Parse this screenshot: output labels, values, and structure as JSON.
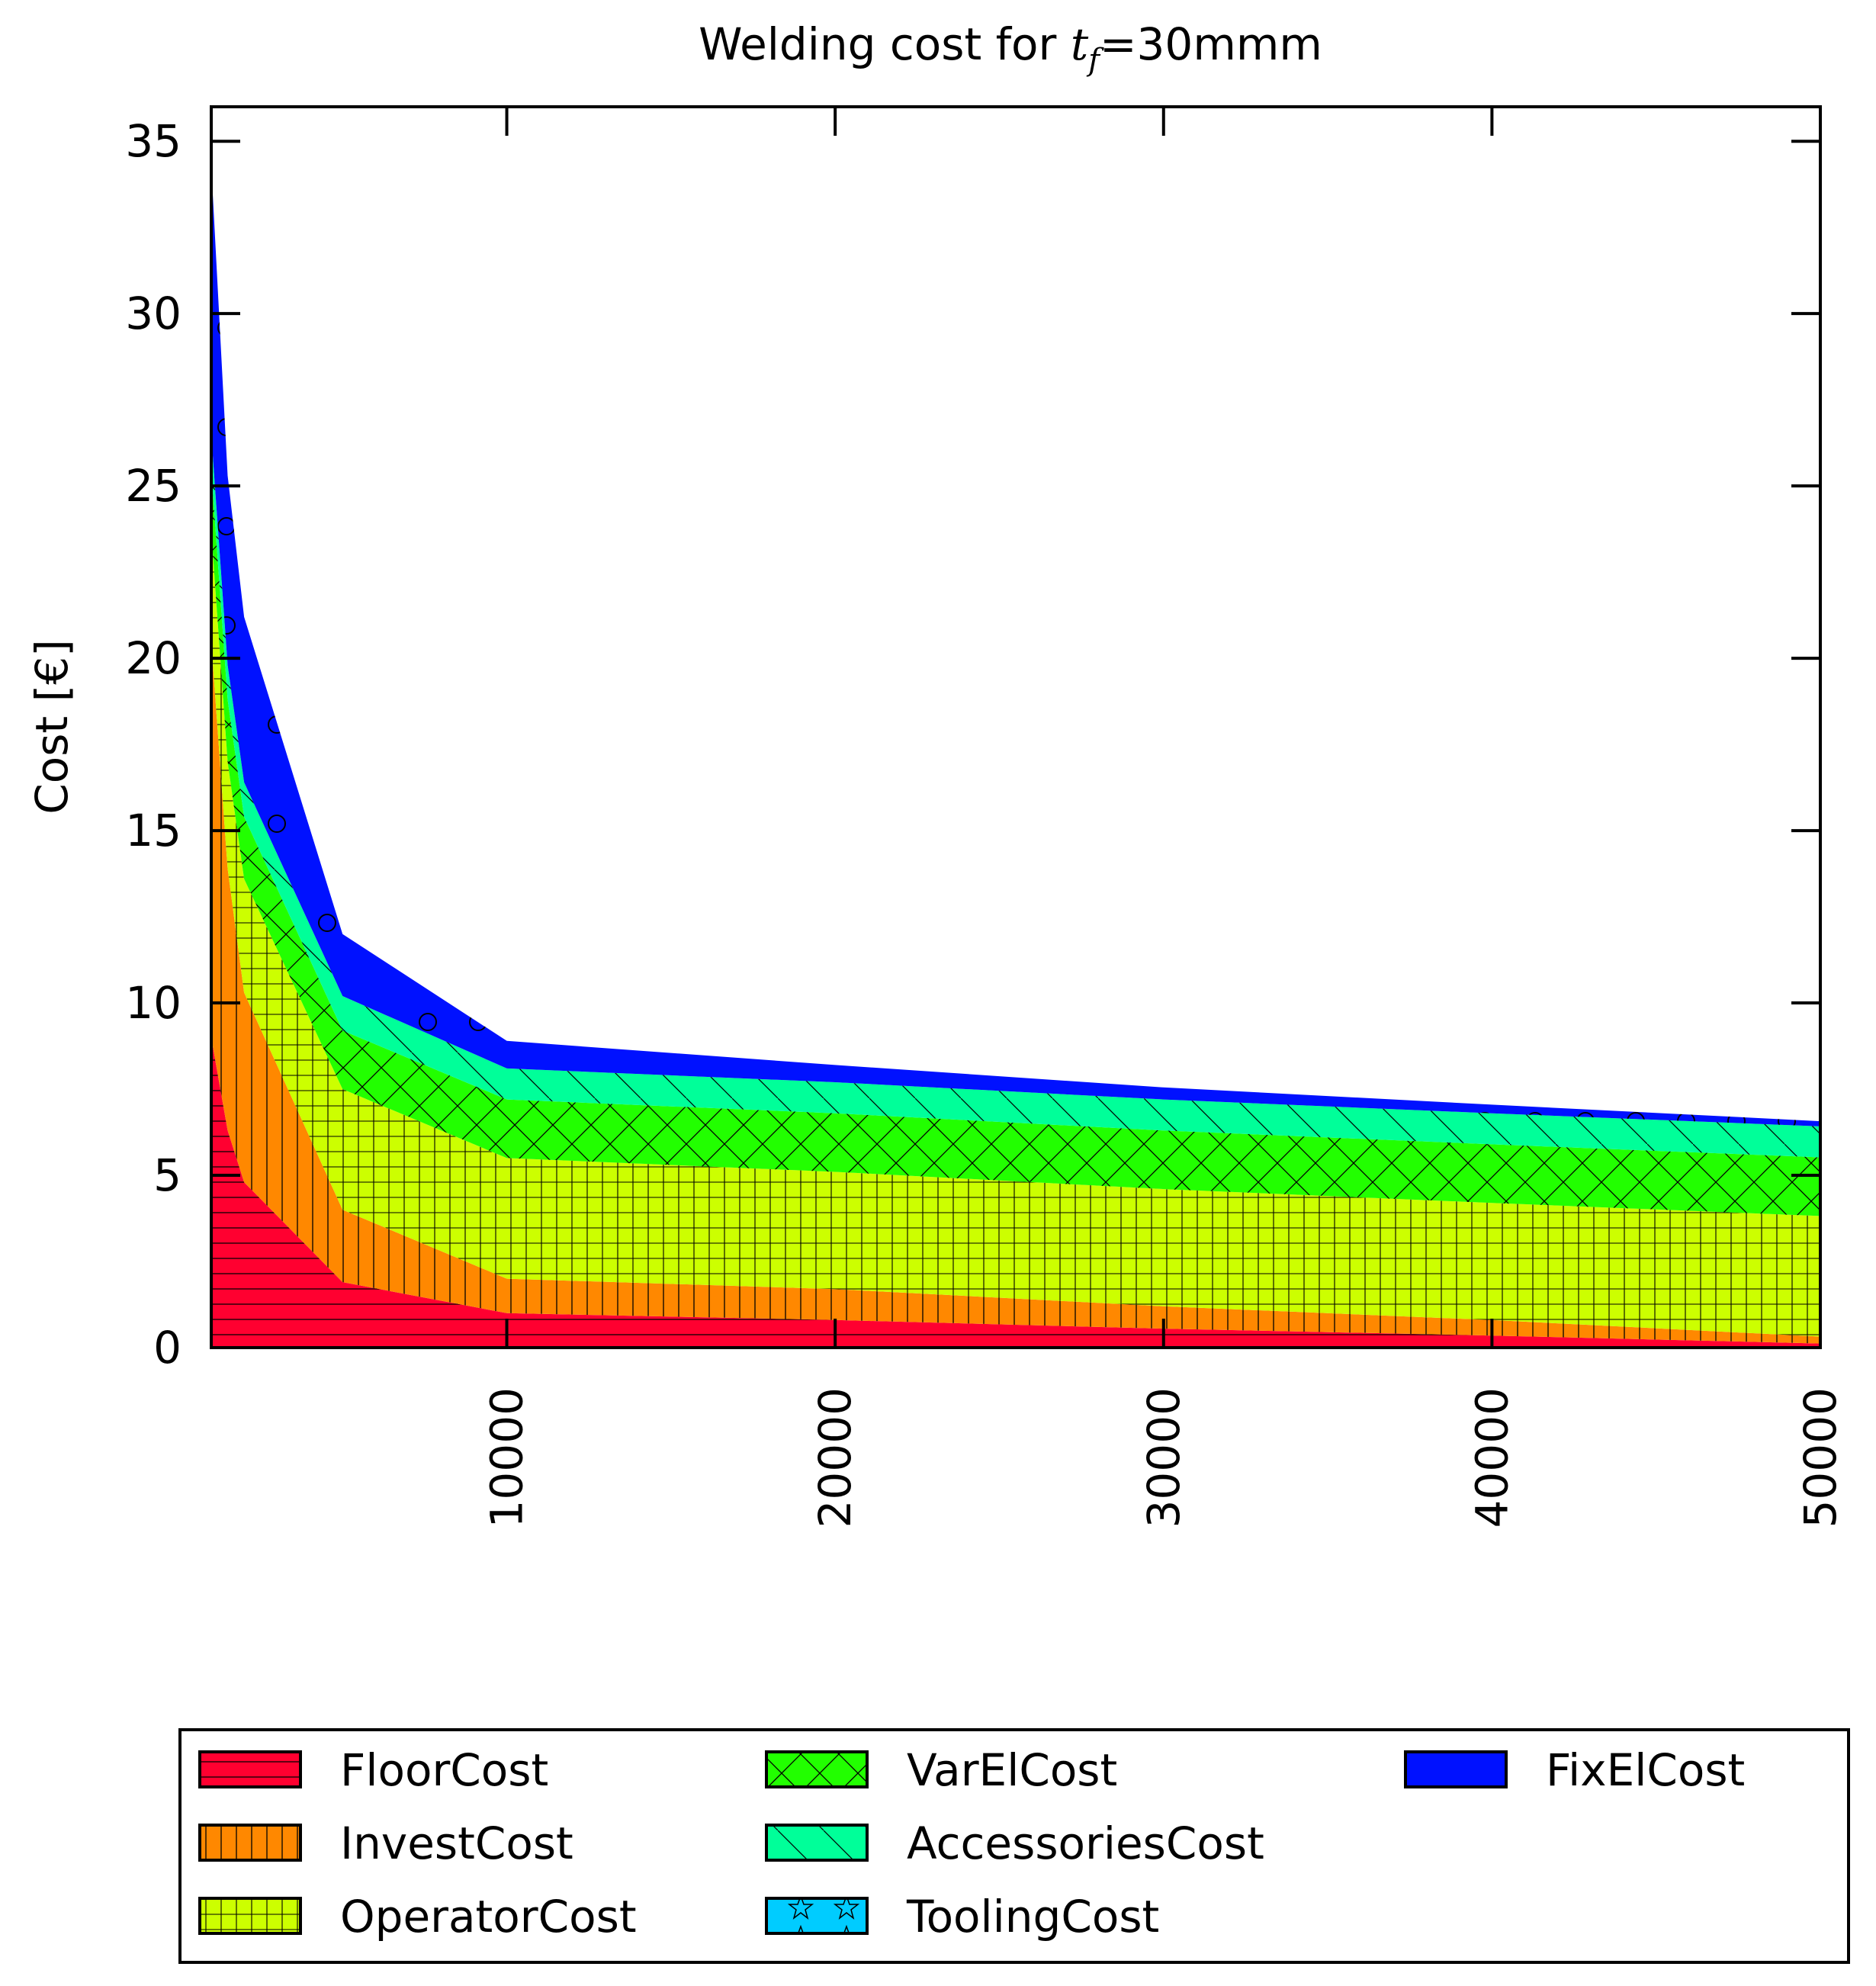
{
  "chart_data": {
    "type": "area",
    "stacked": true,
    "title": {
      "prefix": "Welding cost for ",
      "var": "t",
      "sub": "f",
      "suffix": "=30mmm"
    },
    "xlabel": "",
    "ylabel": "Cost [€]",
    "xlim": [
      1000,
      50000
    ],
    "ylim": [
      0,
      36
    ],
    "x_ticks": [
      10000,
      20000,
      30000,
      40000,
      50000
    ],
    "y_ticks": [
      0,
      5,
      10,
      15,
      20,
      25,
      30,
      35
    ],
    "grid": false,
    "legend_position": "bottom",
    "x": [
      1000,
      1500,
      2000,
      5000,
      10000,
      20000,
      30000,
      40000,
      50000
    ],
    "series": [
      {
        "name": "FloorCost",
        "color": "#ff0030",
        "pattern": "horiz",
        "values": [
          9.0,
          6.3,
          4.8,
          1.9,
          1.0,
          0.8,
          0.55,
          0.35,
          0.12
        ]
      },
      {
        "name": "InvestCost",
        "color": "#ff8800",
        "pattern": "vert",
        "values": [
          11.5,
          7.6,
          5.5,
          2.1,
          1.0,
          0.9,
          0.65,
          0.45,
          0.2
        ]
      },
      {
        "name": "OperatorCost",
        "color": "#ccff00",
        "pattern": "grid",
        "values": [
          3.2,
          3.1,
          3.3,
          3.5,
          3.5,
          3.4,
          3.4,
          3.4,
          3.5
        ]
      },
      {
        "name": "VarElCost",
        "color": "#22ff00",
        "pattern": "cross",
        "values": [
          1.8,
          1.8,
          1.8,
          1.7,
          1.7,
          1.7,
          1.7,
          1.7,
          1.7
        ]
      },
      {
        "name": "AccessoriesCost",
        "color": "#00ff99",
        "pattern": "diag",
        "values": [
          1.0,
          1.0,
          1.0,
          1.0,
          0.9,
          0.9,
          0.9,
          0.9,
          0.9
        ]
      },
      {
        "name": "ToolingCost",
        "color": "#00ccff",
        "pattern": "star",
        "values": [
          0,
          0,
          0,
          0,
          0,
          0,
          0,
          0,
          0
        ]
      },
      {
        "name": "FixElCost",
        "color": "#0011ff",
        "pattern": "circle",
        "values": [
          7.8,
          5.5,
          4.8,
          1.8,
          0.8,
          0.5,
          0.35,
          0.25,
          0.15
        ]
      }
    ]
  }
}
